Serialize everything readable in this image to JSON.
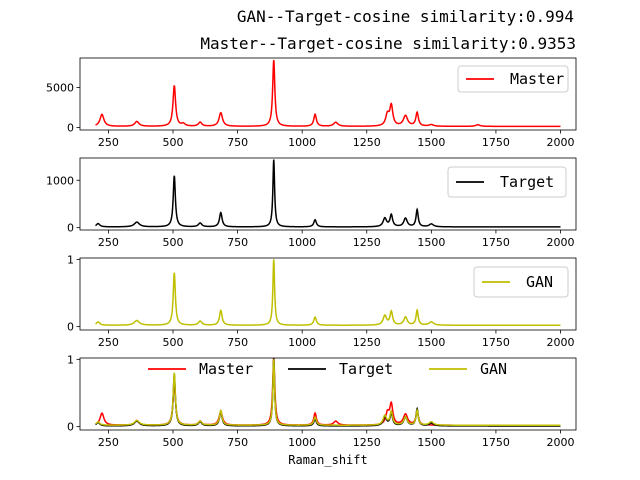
{
  "figure": {
    "title_line1": "GAN--Target-cosine similarity:0.994",
    "title_line2": "Master--Target-cosine similarity:0.9353"
  },
  "chart_data": [
    {
      "type": "line",
      "xlim": [
        140,
        2060
      ],
      "ylim": [
        -300,
        8700
      ],
      "x_ticks": [
        250,
        500,
        750,
        1000,
        1250,
        1500,
        1750,
        2000
      ],
      "y_ticks": [
        0,
        5000
      ],
      "legend_position": "top-right",
      "series": [
        {
          "name": "Master",
          "color": "#ff0000",
          "baseline": 150,
          "peaks": [
            [
              225,
              1500,
              9
            ],
            [
              360,
              600,
              10
            ],
            [
              505,
              5100,
              6
            ],
            [
              540,
              300,
              8
            ],
            [
              605,
              500,
              8
            ],
            [
              685,
              1700,
              8
            ],
            [
              890,
              8300,
              5
            ],
            [
              1050,
              1500,
              6
            ],
            [
              1130,
              500,
              10
            ],
            [
              1330,
              1400,
              8
            ],
            [
              1345,
              2500,
              7
            ],
            [
              1400,
              1300,
              10
            ],
            [
              1445,
              1700,
              6
            ],
            [
              1500,
              200,
              10
            ],
            [
              1680,
              200,
              10
            ]
          ]
        }
      ]
    },
    {
      "type": "line",
      "xlim": [
        140,
        2060
      ],
      "ylim": [
        -50,
        1470
      ],
      "x_ticks": [
        250,
        500,
        750,
        1000,
        1250,
        1500,
        1750,
        2000
      ],
      "y_ticks": [
        0,
        1000
      ],
      "legend_position": "top-right",
      "series": [
        {
          "name": "Target",
          "color": "#000000",
          "baseline": 15,
          "peaks": [
            [
              210,
              70,
              8
            ],
            [
              360,
              100,
              12
            ],
            [
              505,
              1080,
              5
            ],
            [
              605,
              80,
              8
            ],
            [
              685,
              300,
              6
            ],
            [
              890,
              1420,
              4
            ],
            [
              1050,
              150,
              6
            ],
            [
              1320,
              180,
              8
            ],
            [
              1345,
              250,
              6
            ],
            [
              1400,
              180,
              8
            ],
            [
              1445,
              360,
              5
            ],
            [
              1500,
              60,
              10
            ]
          ]
        }
      ]
    },
    {
      "type": "line",
      "xlim": [
        140,
        2060
      ],
      "ylim": [
        -0.05,
        1.02
      ],
      "x_ticks": [
        250,
        500,
        750,
        1000,
        1250,
        1500,
        1750,
        2000
      ],
      "y_ticks": [
        0,
        1
      ],
      "legend_position": "top-right",
      "series": [
        {
          "name": "GAN",
          "color": "#bfbf00",
          "baseline": 0.02,
          "peaks": [
            [
              210,
              0.05,
              8
            ],
            [
              360,
              0.07,
              12
            ],
            [
              505,
              0.78,
              5
            ],
            [
              605,
              0.06,
              8
            ],
            [
              685,
              0.22,
              6
            ],
            [
              890,
              0.98,
              4
            ],
            [
              1050,
              0.12,
              6
            ],
            [
              1320,
              0.14,
              8
            ],
            [
              1345,
              0.2,
              6
            ],
            [
              1400,
              0.12,
              8
            ],
            [
              1445,
              0.22,
              5
            ],
            [
              1500,
              0.05,
              10
            ]
          ]
        }
      ]
    },
    {
      "type": "line",
      "xlim": [
        140,
        2060
      ],
      "ylim": [
        -0.05,
        1.02
      ],
      "x_ticks": [
        250,
        500,
        750,
        1000,
        1250,
        1500,
        1750,
        2000
      ],
      "y_ticks": [
        0,
        1
      ],
      "xlabel": "Raman_shift",
      "legend_position": "top-center",
      "series": [
        {
          "name": "Master",
          "color": "#ff0000",
          "baseline": 0.02,
          "peaks": [
            [
              225,
              0.18,
              9
            ],
            [
              360,
              0.07,
              10
            ],
            [
              505,
              0.61,
              6
            ],
            [
              605,
              0.06,
              8
            ],
            [
              685,
              0.2,
              8
            ],
            [
              890,
              1.0,
              5
            ],
            [
              1050,
              0.18,
              6
            ],
            [
              1130,
              0.06,
              10
            ],
            [
              1330,
              0.17,
              8
            ],
            [
              1345,
              0.3,
              7
            ],
            [
              1400,
              0.16,
              10
            ],
            [
              1445,
              0.2,
              6
            ]
          ]
        },
        {
          "name": "Target",
          "color": "#000000",
          "baseline": 0.01,
          "peaks": [
            [
              210,
              0.05,
              8
            ],
            [
              360,
              0.07,
              12
            ],
            [
              505,
              0.76,
              5
            ],
            [
              605,
              0.06,
              8
            ],
            [
              685,
              0.21,
              6
            ],
            [
              890,
              1.0,
              4
            ],
            [
              1050,
              0.1,
              6
            ],
            [
              1320,
              0.13,
              8
            ],
            [
              1345,
              0.18,
              6
            ],
            [
              1400,
              0.13,
              8
            ],
            [
              1445,
              0.25,
              5
            ],
            [
              1500,
              0.04,
              10
            ]
          ]
        },
        {
          "name": "GAN",
          "color": "#bfbf00",
          "baseline": 0.02,
          "peaks": [
            [
              210,
              0.05,
              8
            ],
            [
              360,
              0.07,
              12
            ],
            [
              505,
              0.78,
              5
            ],
            [
              605,
              0.06,
              8
            ],
            [
              685,
              0.22,
              6
            ],
            [
              890,
              0.98,
              4
            ],
            [
              1050,
              0.12,
              6
            ],
            [
              1320,
              0.14,
              8
            ],
            [
              1345,
              0.2,
              6
            ],
            [
              1400,
              0.12,
              8
            ],
            [
              1445,
              0.22,
              5
            ],
            [
              1500,
              0.05,
              10
            ]
          ]
        }
      ]
    }
  ]
}
